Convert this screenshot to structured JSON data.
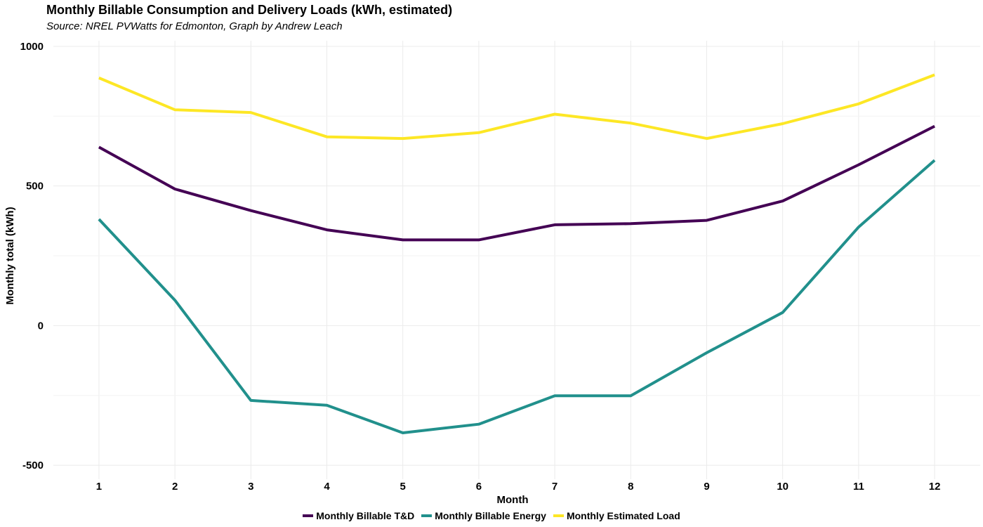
{
  "chart_data": {
    "type": "line",
    "title": "Monthly Billable Consumption and Delivery Loads (kWh, estimated)",
    "subtitle": "Source: NREL PVWatts for Edmonton, Graph by Andrew Leach",
    "xlabel": "Month",
    "ylabel": "Monthly total (kWh)",
    "x": [
      1,
      2,
      3,
      4,
      5,
      6,
      7,
      8,
      9,
      10,
      11,
      12
    ],
    "x_ticks": [
      "1",
      "2",
      "3",
      "4",
      "5",
      "6",
      "7",
      "8",
      "9",
      "10",
      "11",
      "12"
    ],
    "y_ticks": [
      "1000",
      "500",
      "0",
      "-500"
    ],
    "ylim": [
      -550,
      1020
    ],
    "grid": true,
    "legend_position": "bottom",
    "series": [
      {
        "name": "Monthly Billable T&D",
        "color": "#440154",
        "values": [
          639,
          489,
          412,
          343,
          307,
          307,
          361,
          365,
          377,
          446,
          576,
          714
        ]
      },
      {
        "name": "Monthly Billable Energy",
        "color": "#21908C",
        "values": [
          381,
          91,
          -268,
          -285,
          -384,
          -353,
          -251,
          -251,
          -97,
          47,
          353,
          592
        ]
      },
      {
        "name": "Monthly Estimated Load",
        "color": "#FDE725",
        "values": [
          887,
          773,
          763,
          676,
          670,
          691,
          757,
          725,
          670,
          723,
          794,
          898
        ]
      }
    ]
  }
}
